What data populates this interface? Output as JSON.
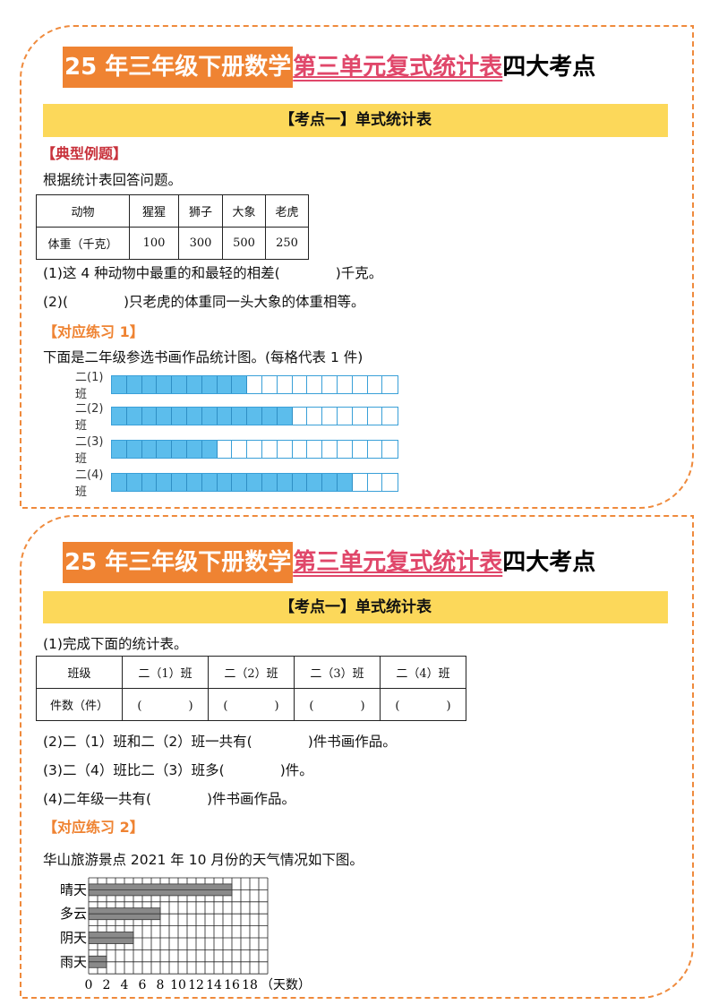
{
  "title": {
    "part1": "25 年三年级下册数学",
    "part2": "第三单元复式统计表",
    "part3": "四大考点"
  },
  "colors": {
    "border": "#ef8a3c",
    "title_bg": "#ef8332",
    "title_pink": "#e0476a",
    "section_bg": "#fcd85a",
    "red": "#c8323c",
    "bar_blue": "#5cbdec",
    "bar_gray": "#8a8a8a"
  },
  "page1": {
    "section": "【考点一】单式统计表",
    "example_label": "【典型例题】",
    "intro": "根据统计表回答问题。",
    "table": {
      "headers": [
        "动物",
        "猩猩",
        "狮子",
        "大象",
        "老虎"
      ],
      "row": [
        "体重（千克）",
        "100",
        "300",
        "500",
        "250"
      ]
    },
    "q1": "(1)这 4 种动物中最重的和最轻的相差(　　　　)千克。",
    "q2": "(2)(　　　　)只老虎的体重同一头大象的体重相等。",
    "practice_label": "【对应练习 1】",
    "practice_text": "下面是二年级参选书画作品统计图。(每格代表 1 件)",
    "chart_data": {
      "type": "bar",
      "categories": [
        "二(1)班",
        "二(2)班",
        "二(3)班",
        "二(4)班"
      ],
      "values": [
        9,
        12,
        7,
        16
      ],
      "total_cells": 19
    }
  },
  "page2": {
    "section": "【考点一】单式统计表",
    "q1": "(1)完成下面的统计表。",
    "table": {
      "headers": [
        "班级",
        "二（1）班",
        "二（2）班",
        "二（3）班",
        "二（4）班"
      ],
      "row": [
        "件数（件）",
        "(　　　　)",
        "(　　　　)",
        "(　　　　)",
        "(　　　　)"
      ]
    },
    "q2": "(2)二（1）班和二（2）班一共有(　　　　)件书画作品。",
    "q3": "(3)二（4）班比二（3）班多(　　　　)件。",
    "q4": "(4)二年级一共有(　　　　)件书画作品。",
    "practice_label": "【对应练习 2】",
    "practice_text": "华山旅游景点 2021 年 10 月份的天气情况如下图。",
    "chart_data": {
      "type": "bar",
      "categories": [
        "晴天",
        "多云",
        "阴天",
        "雨天"
      ],
      "values": [
        16,
        8,
        5,
        2
      ],
      "xticks": [
        "0",
        "2",
        "4",
        "6",
        "8",
        "10",
        "12",
        "14",
        "16",
        "18"
      ],
      "xlabel": "（天数）",
      "xlim": [
        0,
        20
      ],
      "grid": true
    }
  }
}
